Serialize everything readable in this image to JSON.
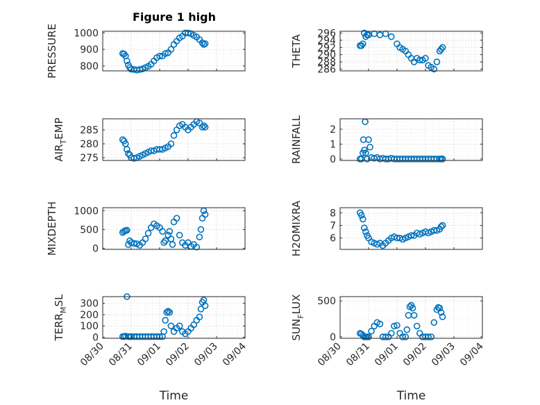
{
  "figure_title": "Figure 1 high",
  "chart_data": [
    {
      "type": "scatter",
      "ylabel": "PRESSURE",
      "xlabel": "",
      "title": "Figure 1 high",
      "xlim": [
        "08/30",
        "09/04"
      ],
      "ylim": [
        770,
        1010
      ],
      "yticks": [
        800,
        900,
        1000
      ],
      "xticks": [],
      "series": [
        {
          "color": "#0072BD",
          "x": [
            0.7,
            0.75,
            0.8,
            0.85,
            0.9,
            0.95,
            1.0,
            1.1,
            1.2,
            1.3,
            1.4,
            1.5,
            1.6,
            1.7,
            1.8,
            1.9,
            2.0,
            2.1,
            2.2,
            2.3,
            2.4,
            2.5,
            2.6,
            2.7,
            2.8,
            2.9,
            3.0,
            3.1,
            3.2,
            3.3,
            3.4,
            3.5,
            3.55,
            3.6
          ],
          "y": [
            875,
            872,
            860,
            830,
            805,
            790,
            780,
            778,
            775,
            778,
            782,
            790,
            798,
            810,
            830,
            850,
            860,
            860,
            875,
            880,
            900,
            930,
            950,
            970,
            980,
            1000,
            1000,
            995,
            985,
            975,
            960,
            940,
            930,
            935
          ]
        }
      ]
    },
    {
      "type": "scatter",
      "ylabel": "THETA",
      "xlabel": "",
      "xlim": [
        "08/30",
        "09/04"
      ],
      "ylim": [
        285.5,
        296.5
      ],
      "yticks": [
        286,
        288,
        290,
        292,
        294,
        296
      ],
      "xticks": [],
      "series": [
        {
          "color": "#0072BD",
          "x": [
            0.7,
            0.75,
            0.8,
            0.85,
            0.9,
            0.95,
            1.0,
            1.2,
            1.4,
            1.6,
            1.8,
            2.0,
            2.1,
            2.2,
            2.3,
            2.4,
            2.5,
            2.6,
            2.7,
            2.8,
            2.9,
            3.0,
            3.1,
            3.2,
            3.3,
            3.4,
            3.5,
            3.55,
            3.6
          ],
          "y": [
            292.5,
            292.5,
            293,
            296,
            295,
            295.5,
            295.5,
            295.8,
            295.5,
            295.8,
            295,
            293,
            292,
            291.5,
            291,
            290,
            289,
            288,
            289,
            288.5,
            288.5,
            289,
            287,
            286.5,
            286,
            288,
            291,
            291.5,
            292
          ]
        }
      ]
    },
    {
      "type": "scatter",
      "ylabel": "AIR_TEMP",
      "ylabel_main": "AIR",
      "ylabel_sub": "T",
      "ylabel_rest": "EMP",
      "xlabel": "",
      "xlim": [
        "08/30",
        "09/04"
      ],
      "ylim": [
        274,
        289
      ],
      "yticks": [
        275,
        280,
        285
      ],
      "xticks": [],
      "series": [
        {
          "color": "#0072BD",
          "x": [
            0.7,
            0.75,
            0.8,
            0.85,
            0.9,
            0.95,
            1.0,
            1.1,
            1.2,
            1.3,
            1.4,
            1.5,
            1.6,
            1.7,
            1.8,
            1.9,
            2.0,
            2.1,
            2.2,
            2.3,
            2.4,
            2.5,
            2.6,
            2.7,
            2.8,
            2.9,
            3.0,
            3.1,
            3.2,
            3.3,
            3.4,
            3.5,
            3.55,
            3.6
          ],
          "y": [
            281.5,
            281,
            280,
            278,
            276.5,
            276,
            275,
            274.8,
            275,
            275.5,
            276,
            276.5,
            277,
            277.5,
            277.5,
            278,
            278,
            278,
            278.5,
            279,
            280,
            283,
            285,
            286.5,
            287,
            286,
            285,
            286,
            287,
            288,
            287.5,
            286,
            286.5,
            286
          ]
        }
      ]
    },
    {
      "type": "scatter",
      "ylabel": "RAINFALL",
      "xlabel": "",
      "xlim": [
        "08/30",
        "09/04"
      ],
      "ylim": [
        -0.1,
        2.7
      ],
      "yticks": [
        0,
        1,
        2
      ],
      "xticks": [],
      "series": [
        {
          "color": "#0072BD",
          "x": [
            0.7,
            0.75,
            0.8,
            0.82,
            0.85,
            0.88,
            0.9,
            0.95,
            1.0,
            1.05,
            1.1,
            1.2,
            1.3,
            1.4,
            1.5,
            1.6,
            1.7,
            1.8,
            1.9,
            2.0,
            2.1,
            2.2,
            2.3,
            2.4,
            2.5,
            2.6,
            2.7,
            2.8,
            2.9,
            3.0,
            3.1,
            3.2,
            3.3,
            3.4,
            3.5,
            3.55,
            3.6
          ],
          "y": [
            0,
            0,
            0.4,
            1.3,
            0.6,
            2.5,
            0.4,
            0,
            1.3,
            0.8,
            0.1,
            0.05,
            0.1,
            0,
            0.05,
            0,
            0,
            0.05,
            0,
            0,
            0,
            0,
            0,
            0,
            0,
            0,
            0,
            0,
            0,
            0,
            0,
            0,
            0,
            0,
            0,
            0,
            0
          ]
        }
      ]
    },
    {
      "type": "scatter",
      "ylabel": "MIXDEPTH",
      "xlabel": "",
      "xlim": [
        "08/30",
        "09/04"
      ],
      "ylim": [
        -30,
        1080
      ],
      "yticks": [
        0,
        500,
        1000
      ],
      "xticks": [],
      "series": [
        {
          "color": "#0072BD",
          "x": [
            0.7,
            0.75,
            0.8,
            0.85,
            0.9,
            0.95,
            1.0,
            1.1,
            1.2,
            1.3,
            1.4,
            1.5,
            1.6,
            1.7,
            1.8,
            1.9,
            2.0,
            2.1,
            2.15,
            2.2,
            2.3,
            2.35,
            2.4,
            2.45,
            2.5,
            2.6,
            2.7,
            2.8,
            2.9,
            3.0,
            3.1,
            3.2,
            3.3,
            3.4,
            3.45,
            3.5,
            3.55,
            3.6
          ],
          "y": [
            420,
            450,
            470,
            480,
            100,
            200,
            150,
            130,
            120,
            80,
            150,
            250,
            400,
            550,
            650,
            600,
            550,
            450,
            150,
            200,
            350,
            450,
            250,
            100,
            700,
            800,
            350,
            150,
            80,
            150,
            50,
            100,
            30,
            300,
            500,
            800,
            1000,
            900
          ]
        }
      ]
    },
    {
      "type": "scatter",
      "ylabel": "H2OMIXRA",
      "xlabel": "",
      "xlim": [
        "08/30",
        "09/04"
      ],
      "ylim": [
        5.1,
        8.4
      ],
      "yticks": [
        6,
        7,
        8
      ],
      "xticks": [],
      "series": [
        {
          "color": "#0072BD",
          "x": [
            0.7,
            0.75,
            0.8,
            0.85,
            0.9,
            0.95,
            1.0,
            1.1,
            1.2,
            1.3,
            1.4,
            1.5,
            1.6,
            1.7,
            1.8,
            1.9,
            2.0,
            2.1,
            2.2,
            2.3,
            2.4,
            2.5,
            2.6,
            2.7,
            2.8,
            2.9,
            3.0,
            3.1,
            3.2,
            3.3,
            3.4,
            3.5,
            3.55,
            3.6
          ],
          "y": [
            8,
            7.8,
            7.5,
            6.8,
            6.5,
            6.2,
            6,
            5.7,
            5.6,
            5.5,
            5.6,
            5.4,
            5.6,
            5.8,
            6,
            6.1,
            6,
            6,
            5.9,
            6,
            6.1,
            6.2,
            6.2,
            6.4,
            6.3,
            6.4,
            6.5,
            6.4,
            6.5,
            6.6,
            6.6,
            6.7,
            6.9,
            7
          ]
        }
      ]
    },
    {
      "type": "scatter",
      "ylabel": "TERR_MSL",
      "ylabel_main": "TERR",
      "ylabel_sub": "M",
      "ylabel_rest": "SL",
      "xlabel": "Time",
      "xlim": [
        "08/30",
        "09/04"
      ],
      "ylim": [
        -10,
        360
      ],
      "yticks": [
        0,
        100,
        200,
        300
      ],
      "xticks": [
        "08/30",
        "08/31",
        "09/01",
        "09/02",
        "09/03",
        "09/04"
      ],
      "series": [
        {
          "color": "#0072BD",
          "x": [
            0.7,
            0.75,
            0.8,
            0.85,
            0.9,
            0.95,
            1.0,
            1.1,
            1.2,
            1.3,
            1.4,
            1.5,
            1.6,
            1.7,
            1.8,
            1.9,
            2.0,
            2.1,
            2.15,
            2.2,
            2.25,
            2.3,
            2.35,
            2.4,
            2.5,
            2.6,
            2.7,
            2.8,
            2.9,
            3.0,
            3.1,
            3.2,
            3.3,
            3.4,
            3.45,
            3.5,
            3.55,
            3.6
          ],
          "y": [
            5,
            5,
            10,
            360,
            5,
            5,
            5,
            5,
            5,
            5,
            5,
            5,
            5,
            5,
            5,
            5,
            5,
            5,
            50,
            150,
            220,
            230,
            220,
            100,
            50,
            80,
            100,
            50,
            30,
            50,
            80,
            110,
            150,
            180,
            250,
            310,
            330,
            280
          ]
        }
      ]
    },
    {
      "type": "scatter",
      "ylabel": "SUN_FLUX",
      "ylabel_main": "SUN",
      "ylabel_sub": "F",
      "ylabel_rest": "LUX",
      "xlabel": "Time",
      "xlim": [
        "08/30",
        "09/04"
      ],
      "ylim": [
        -20,
        560
      ],
      "yticks": [
        0,
        500
      ],
      "xticks": [
        "08/30",
        "08/31",
        "09/01",
        "09/02",
        "09/03",
        "09/04"
      ],
      "series": [
        {
          "color": "#0072BD",
          "x": [
            0.7,
            0.75,
            0.8,
            0.85,
            0.9,
            0.95,
            1.0,
            1.1,
            1.2,
            1.3,
            1.4,
            1.5,
            1.6,
            1.7,
            1.8,
            1.9,
            2.0,
            2.1,
            2.2,
            2.3,
            2.35,
            2.4,
            2.45,
            2.5,
            2.55,
            2.6,
            2.7,
            2.8,
            2.9,
            3.0,
            3.1,
            3.2,
            3.3,
            3.4,
            3.45,
            3.5,
            3.55,
            3.6
          ],
          "y": [
            50,
            40,
            20,
            0,
            0,
            0,
            0,
            80,
            150,
            200,
            180,
            0,
            0,
            0,
            50,
            150,
            160,
            50,
            0,
            0,
            100,
            300,
            420,
            440,
            400,
            300,
            150,
            50,
            0,
            0,
            0,
            0,
            200,
            380,
            410,
            400,
            340,
            280
          ]
        }
      ]
    }
  ]
}
